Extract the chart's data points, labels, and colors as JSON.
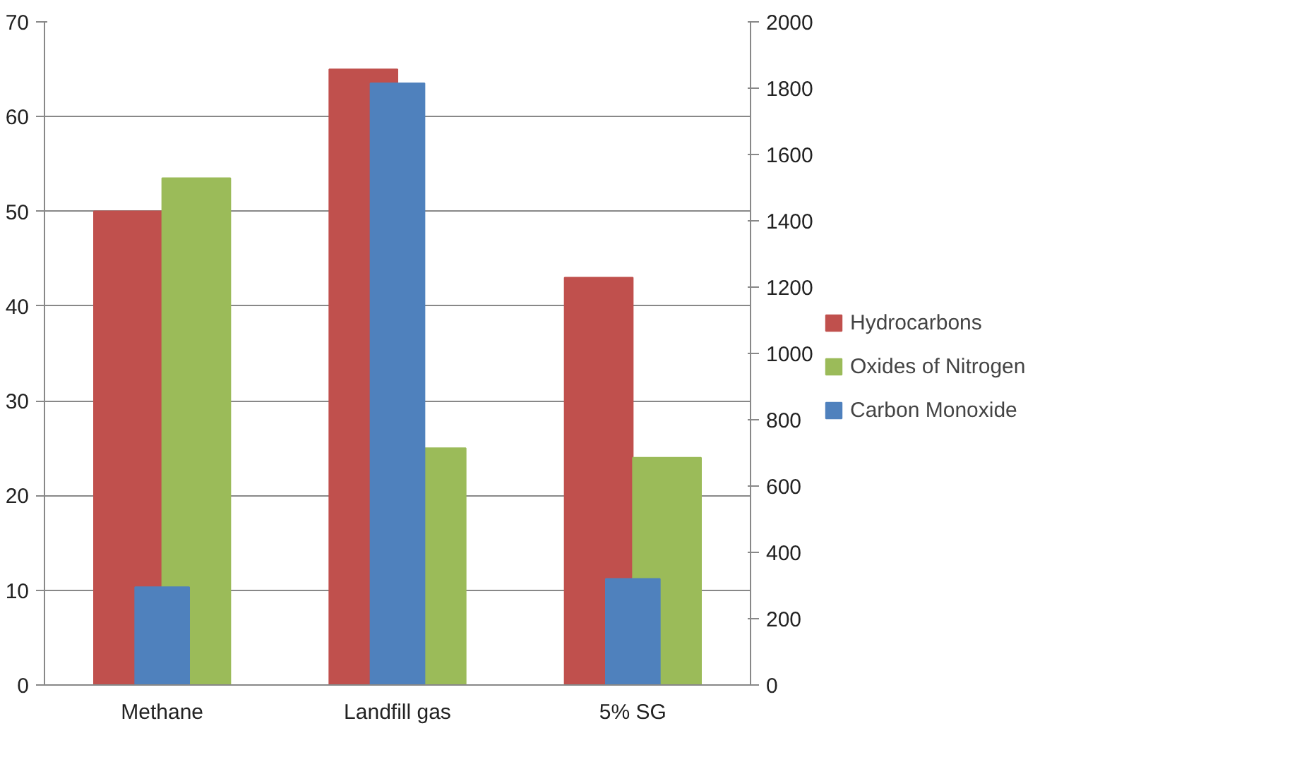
{
  "chart_data": {
    "type": "bar",
    "categories": [
      "Methane",
      "Landfill gas",
      "5% SG"
    ],
    "series": [
      {
        "name": "Hydrocarbons",
        "color": "#c0504d",
        "values": [
          50,
          65,
          43
        ]
      },
      {
        "name": "Oxides of Nitrogen",
        "color": "#9bbb59",
        "values": [
          53.5,
          25,
          24
        ]
      },
      {
        "name": "Carbon Monoxide",
        "color": "#4f81bd",
        "values": [
          295,
          1815,
          320
        ],
        "axis": "y2"
      }
    ],
    "ylim": [
      0,
      70
    ],
    "yticks": [
      0,
      10,
      20,
      30,
      40,
      50,
      60,
      70
    ],
    "y2lim": [
      0,
      2000
    ],
    "y2ticks": [
      0,
      200,
      400,
      600,
      800,
      1000,
      1200,
      1400,
      1600,
      1800,
      2000
    ],
    "grid": "y",
    "legend": "right"
  }
}
